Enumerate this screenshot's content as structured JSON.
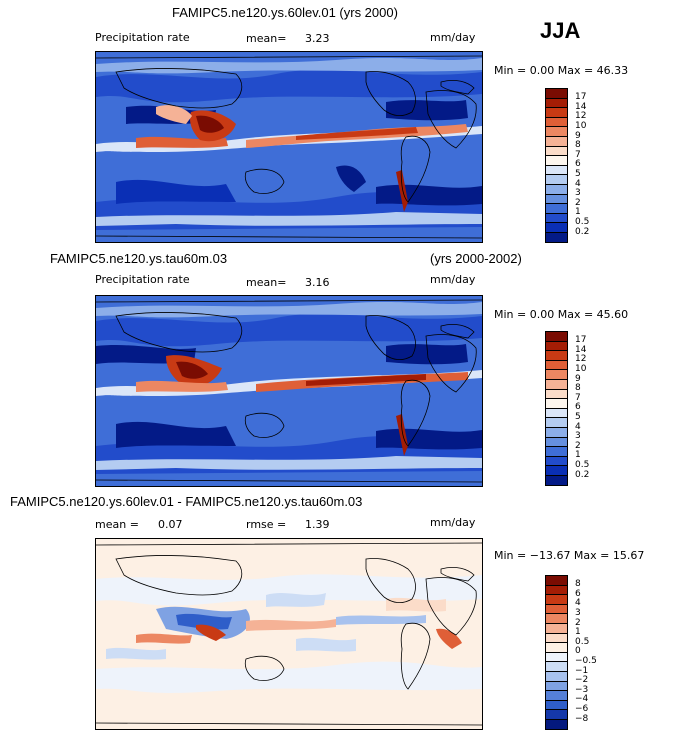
{
  "season": "JJA",
  "panels": [
    {
      "title": "FAMIPC5.ne120.ys.60lev.01 (yrs 2000)",
      "title2": "",
      "left_label": "Precipitation rate",
      "mid_label": "mean=",
      "mid_value": "3.23",
      "mid_label2": "",
      "mid_value2": "",
      "units": "mm/day",
      "minmax": "Min =   0.00  Max =   46.33",
      "colorbar_labels": [
        "17",
        "14",
        "12",
        "10",
        "9",
        "8",
        "7",
        "6",
        "5",
        "4",
        "3",
        "2",
        "1",
        "0.5",
        "0.2"
      ],
      "colors": [
        "#7a0c02",
        "#a41d05",
        "#c83a14",
        "#df5f37",
        "#ec8762",
        "#f5b296",
        "#fbdcc9",
        "#fdf6ee",
        "#dbe6f8",
        "#b4ccf1",
        "#8caee9",
        "#6690df",
        "#3f6ed7",
        "#224ccb",
        "#0a2fb5",
        "#031a87"
      ]
    },
    {
      "title": "FAMIPC5.ne120.ys.tau60m.03",
      "title2": "(yrs 2000-2002)",
      "left_label": "Precipitation rate",
      "mid_label": "mean=",
      "mid_value": "3.16",
      "mid_label2": "",
      "mid_value2": "",
      "units": "mm/day",
      "minmax": "Min =   0.00  Max =   45.60",
      "colorbar_labels": [
        "17",
        "14",
        "12",
        "10",
        "9",
        "8",
        "7",
        "6",
        "5",
        "4",
        "3",
        "2",
        "1",
        "0.5",
        "0.2"
      ],
      "colors": [
        "#7a0c02",
        "#a41d05",
        "#c83a14",
        "#df5f37",
        "#ec8762",
        "#f5b296",
        "#fbdcc9",
        "#fdf6ee",
        "#dbe6f8",
        "#b4ccf1",
        "#8caee9",
        "#6690df",
        "#3f6ed7",
        "#224ccb",
        "#0a2fb5",
        "#031a87"
      ]
    },
    {
      "title": "FAMIPC5.ne120.ys.60lev.01 - FAMIPC5.ne120.ys.tau60m.03",
      "title2": "",
      "left_label": "",
      "mid_label": "mean =",
      "mid_value": "0.07",
      "mid_label2": "rmse =",
      "mid_value2": "1.39",
      "units": "mm/day",
      "minmax": "Min = −13.67  Max =  15.67",
      "colorbar_labels": [
        "8",
        "6",
        "4",
        "3",
        "2",
        "1",
        "0.5",
        "0",
        "−0.5",
        "−1",
        "−2",
        "−3",
        "−4",
        "−6",
        "−8"
      ],
      "colors": [
        "#7a0c02",
        "#a41d05",
        "#c83a14",
        "#df5f37",
        "#ec8762",
        "#f5b296",
        "#fbdcc9",
        "#fdf0e4",
        "#eef3fb",
        "#cdddf5",
        "#a8c2ee",
        "#7fa2e3",
        "#5580d8",
        "#2f5ec9",
        "#1538aa",
        "#04197e"
      ]
    }
  ]
}
